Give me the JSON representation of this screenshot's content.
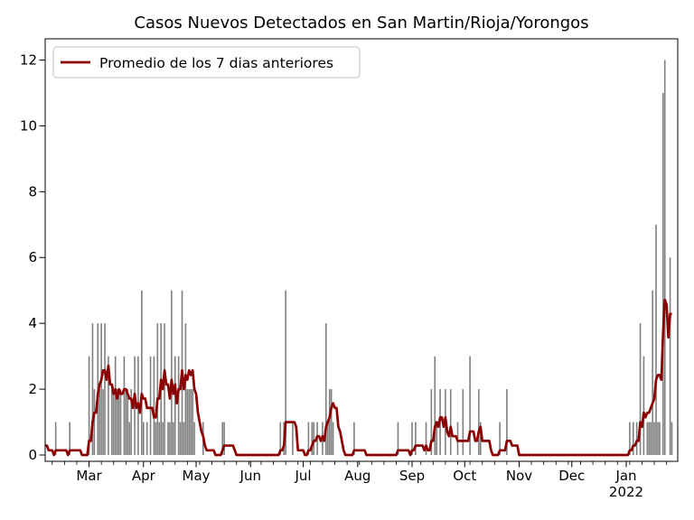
{
  "title": "Casos Nuevos Detectados en San Martin/Rioja/Yorongos",
  "legend": {
    "label": "Promedio de los 7 dias anteriores",
    "position": "upper-left"
  },
  "colors": {
    "bar": "#7f7f7f",
    "avg_line": "#8b0000",
    "axis": "#000000",
    "background": "#ffffff",
    "legend_border": "#cccccc"
  },
  "chart_data": {
    "type": "bar",
    "title": "Casos Nuevos Detectados en San Martin/Rioja/Yorongos",
    "xlabel": "",
    "ylabel": "",
    "grid": false,
    "legend_position": "upper-left",
    "x_axis": {
      "tick_labels": [
        "Mar",
        "Apr",
        "May",
        "Jun",
        "Jul",
        "Aug",
        "Sep",
        "Oct",
        "Nov",
        "Dec",
        "Jan"
      ],
      "year_label": "2022",
      "year_label_under_index": 10,
      "tick_days": [
        25,
        56,
        86,
        117,
        147,
        178,
        209,
        239,
        270,
        300,
        331
      ],
      "minor_tick_first_day": 4,
      "minor_tick_interval_days": 7,
      "total_days": 358
    },
    "y_axis": {
      "ticks": [
        0,
        2,
        4,
        6,
        8,
        10,
        12
      ],
      "ylim": [
        -0.19,
        12.65
      ]
    },
    "series": [
      {
        "name": "casos_nuevos_diarios",
        "type": "bar",
        "points_day_value": [
          [
            6,
            1
          ],
          [
            14,
            1
          ],
          [
            25,
            3
          ],
          [
            27,
            4
          ],
          [
            28,
            2
          ],
          [
            30,
            4
          ],
          [
            31,
            2
          ],
          [
            32,
            4
          ],
          [
            33,
            2
          ],
          [
            34,
            4
          ],
          [
            36,
            3
          ],
          [
            38,
            2
          ],
          [
            39,
            2
          ],
          [
            40,
            3
          ],
          [
            41,
            2
          ],
          [
            42,
            2
          ],
          [
            43,
            2
          ],
          [
            45,
            3
          ],
          [
            46,
            2
          ],
          [
            47,
            2
          ],
          [
            48,
            1
          ],
          [
            49,
            2
          ],
          [
            51,
            3
          ],
          [
            53,
            3
          ],
          [
            55,
            5
          ],
          [
            56,
            1
          ],
          [
            58,
            1
          ],
          [
            60,
            3
          ],
          [
            62,
            3
          ],
          [
            63,
            1
          ],
          [
            64,
            4
          ],
          [
            65,
            1
          ],
          [
            66,
            4
          ],
          [
            67,
            1
          ],
          [
            68,
            4
          ],
          [
            70,
            1
          ],
          [
            71,
            1
          ],
          [
            72,
            5
          ],
          [
            73,
            1
          ],
          [
            74,
            3
          ],
          [
            76,
            3
          ],
          [
            77,
            1
          ],
          [
            78,
            5
          ],
          [
            79,
            1
          ],
          [
            80,
            4
          ],
          [
            81,
            2
          ],
          [
            82,
            2
          ],
          [
            83,
            2
          ],
          [
            84,
            2
          ],
          [
            85,
            1
          ],
          [
            90,
            1
          ],
          [
            101,
            1
          ],
          [
            102,
            1
          ],
          [
            134,
            1
          ],
          [
            136,
            1
          ],
          [
            137,
            5
          ],
          [
            141,
            1
          ],
          [
            150,
            1
          ],
          [
            152,
            1
          ],
          [
            153,
            1
          ],
          [
            155,
            1
          ],
          [
            158,
            1
          ],
          [
            160,
            4
          ],
          [
            161,
            1
          ],
          [
            162,
            2
          ],
          [
            163,
            2
          ],
          [
            164,
            1
          ],
          [
            176,
            1
          ],
          [
            201,
            1
          ],
          [
            209,
            1
          ],
          [
            211,
            1
          ],
          [
            217,
            1
          ],
          [
            220,
            2
          ],
          [
            222,
            3
          ],
          [
            223,
            1
          ],
          [
            225,
            2
          ],
          [
            228,
            2
          ],
          [
            231,
            2
          ],
          [
            235,
            1
          ],
          [
            238,
            2
          ],
          [
            242,
            3
          ],
          [
            247,
            2
          ],
          [
            248,
            1
          ],
          [
            259,
            1
          ],
          [
            263,
            2
          ],
          [
            333,
            1
          ],
          [
            335,
            1
          ],
          [
            337,
            1
          ],
          [
            339,
            4
          ],
          [
            341,
            3
          ],
          [
            343,
            1
          ],
          [
            344,
            1
          ],
          [
            345,
            1
          ],
          [
            346,
            5
          ],
          [
            347,
            1
          ],
          [
            348,
            7
          ],
          [
            349,
            1
          ],
          [
            350,
            1
          ],
          [
            352,
            11
          ],
          [
            353,
            12
          ],
          [
            356,
            6
          ],
          [
            357,
            1
          ]
        ]
      },
      {
        "name": "promedio_7_dias",
        "type": "line",
        "derived": "rolling_mean_7_including_current_of_bar_series",
        "lead_in_previous_days": [
          0,
          1,
          0,
          0,
          1,
          0
        ]
      }
    ]
  }
}
